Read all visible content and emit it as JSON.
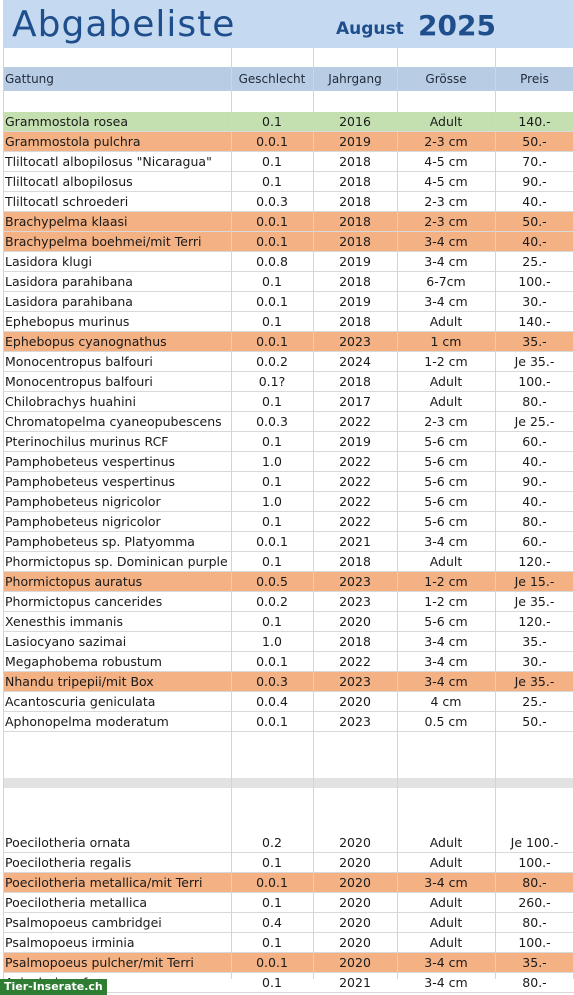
{
  "title": {
    "main": "Abgabeliste",
    "month": "August",
    "year": "2025"
  },
  "columns": [
    "Gattung",
    "Geschlecht",
    "Jahrgang",
    "Grösse",
    "Preis"
  ],
  "colors": {
    "title_band": "#c5d9f1",
    "header_band": "#b8cce4",
    "green": "#c4e0b0",
    "orange": "#f4b183",
    "title_text": "#1f4e8c"
  },
  "rows": [
    {
      "name": "Grammostola rosea",
      "sex": "0.1",
      "year": "2016",
      "size": "Adult",
      "price": "140.-",
      "hl": "green"
    },
    {
      "name": "Grammostola pulchra",
      "sex": "0.0.1",
      "year": "2019",
      "size": "2-3 cm",
      "price": "50.-",
      "hl": "orange"
    },
    {
      "name": "Tliltocatl albopilosus \"Nicaragua\"",
      "sex": "0.1",
      "year": "2018",
      "size": "4-5 cm",
      "price": "70.-",
      "hl": ""
    },
    {
      "name": "Tliltocatl albopilosus",
      "sex": "0.1",
      "year": "2018",
      "size": "4-5 cm",
      "price": "90.-",
      "hl": ""
    },
    {
      "name": "Tliltocatl schroederi",
      "sex": "0.0.3",
      "year": "2018",
      "size": "2-3 cm",
      "price": "40.-",
      "hl": ""
    },
    {
      "name": "Brachypelma  klaasi",
      "sex": "0.0.1",
      "year": "2018",
      "size": "2-3 cm",
      "price": "50.-",
      "hl": "orange"
    },
    {
      "name": "Brachypelma boehmei/mit Terri",
      "sex": "0.0.1",
      "year": "2018",
      "size": "3-4 cm",
      "price": "40.-",
      "hl": "orange"
    },
    {
      "name": "Lasidora klugi",
      "sex": "0.0.8",
      "year": "2019",
      "size": "3-4 cm",
      "price": "25.-",
      "hl": ""
    },
    {
      "name": "Lasidora parahibana",
      "sex": "0.1",
      "year": "2018",
      "size": "6-7cm",
      "price": "100.-",
      "hl": ""
    },
    {
      "name": "Lasidora parahibana",
      "sex": "0.0.1",
      "year": "2019",
      "size": "3-4 cm",
      "price": "30.-",
      "hl": ""
    },
    {
      "name": "Ephebopus murinus",
      "sex": "0.1",
      "year": "2018",
      "size": "Adult",
      "price": "140.-",
      "hl": ""
    },
    {
      "name": "Ephebopus cyanognathus",
      "sex": "0.0.1",
      "year": "2023",
      "size": "1 cm",
      "price": "35.-",
      "hl": "orange"
    },
    {
      "name": "Monocentropus balfouri",
      "sex": "0.0.2",
      "year": "2024",
      "size": "1-2 cm",
      "price": "Je 35.-",
      "hl": ""
    },
    {
      "name": "Monocentropus balfouri",
      "sex": "0.1?",
      "year": "2018",
      "size": "Adult",
      "price": "100.-",
      "hl": ""
    },
    {
      "name": "Chilobrachys huahini",
      "sex": "0.1",
      "year": "2017",
      "size": "Adult",
      "price": "80.-",
      "hl": ""
    },
    {
      "name": "Chromatopelma cyaneopubescens",
      "sex": "0.0.3",
      "year": "2022",
      "size": "2-3 cm",
      "price": "Je 25.-",
      "hl": ""
    },
    {
      "name": "Pterinochilus murinus RCF",
      "sex": "0.1",
      "year": "2019",
      "size": "5-6 cm",
      "price": "60.-",
      "hl": ""
    },
    {
      "name": "Pamphobeteus vespertinus",
      "sex": "1.0",
      "year": "2022",
      "size": "5-6 cm",
      "price": "40.-",
      "hl": ""
    },
    {
      "name": "Pamphobeteus vespertinus",
      "sex": "0.1",
      "year": "2022",
      "size": "5-6 cm",
      "price": "90.-",
      "hl": ""
    },
    {
      "name": "Pamphobeteus nigricolor",
      "sex": "1.0",
      "year": "2022",
      "size": "5-6 cm",
      "price": "40.-",
      "hl": ""
    },
    {
      "name": "Pamphobeteus nigricolor",
      "sex": "0.1",
      "year": "2022",
      "size": "5-6 cm",
      "price": "80.-",
      "hl": ""
    },
    {
      "name": "Pamphobeteus sp. Platyomma",
      "sex": "0.0.1",
      "year": "2021",
      "size": "3-4 cm",
      "price": "60.-",
      "hl": ""
    },
    {
      "name": "Phormictopus sp. Dominican purple",
      "sex": "0.1",
      "year": "2018",
      "size": "Adult",
      "price": "120.-",
      "hl": ""
    },
    {
      "name": "Phormictopus auratus",
      "sex": "0.0.5",
      "year": "2023",
      "size": "1-2 cm",
      "price": "Je 15.-",
      "hl": "orange"
    },
    {
      "name": "Phormictopus cancerides",
      "sex": "0.0.2",
      "year": "2023",
      "size": "1-2 cm",
      "price": "Je 35.-",
      "hl": ""
    },
    {
      "name": "Xenesthis immanis",
      "sex": "0.1",
      "year": "2020",
      "size": "5-6 cm",
      "price": "120.-",
      "hl": ""
    },
    {
      "name": "Lasiocyano sazimai",
      "sex": "1.0",
      "year": "2018",
      "size": "3-4 cm",
      "price": "35.-",
      "hl": ""
    },
    {
      "name": "Megaphobema robustum",
      "sex": "0.0.1",
      "year": "2022",
      "size": "3-4 cm",
      "price": "30.-",
      "hl": ""
    },
    {
      "name": "Nhandu tripepii/mit Box",
      "sex": "0.0.3",
      "year": "2023",
      "size": "3-4 cm",
      "price": "Je 35.-",
      "hl": "orange"
    },
    {
      "name": "Acantoscuria geniculata",
      "sex": "0.0.4",
      "year": "2020",
      "size": "4 cm",
      "price": "25.-",
      "hl": ""
    },
    {
      "name": "Aphonopelma moderatum",
      "sex": "0.0.1",
      "year": "2023",
      "size": "0.5 cm",
      "price": "50.-",
      "hl": ""
    }
  ],
  "rows2": [
    {
      "name": "Poecilotheria ornata",
      "sex": "0.2",
      "year": "2020",
      "size": "Adult",
      "price": "Je 100.-",
      "hl": ""
    },
    {
      "name": "Poecilotheria regalis",
      "sex": "0.1",
      "year": "2020",
      "size": "Adult",
      "price": "100.-",
      "hl": ""
    },
    {
      "name": "Poecilotheria metallica/mit Terri",
      "sex": "0.0.1",
      "year": "2020",
      "size": "3-4 cm",
      "price": "80.-",
      "hl": "orange"
    },
    {
      "name": "Poecilotheria metallica",
      "sex": "0.1",
      "year": "2020",
      "size": "Adult",
      "price": "260.-",
      "hl": ""
    },
    {
      "name": "Psalmopoeus cambridgei",
      "sex": "0.4",
      "year": "2020",
      "size": "Adult",
      "price": "80.-",
      "hl": ""
    },
    {
      "name": "Psalmopoeus irminia",
      "sex": "0.1",
      "year": "2020",
      "size": "Adult",
      "price": "100.-",
      "hl": ""
    },
    {
      "name": "Psalmopoeus pulcher/mit Terri",
      "sex": "0.0.1",
      "year": "2020",
      "size": "3-4 cm",
      "price": "35.-",
      "hl": "orange"
    },
    {
      "name": "Avicularia rufus",
      "sex": "0.1",
      "year": "2021",
      "size": "3-4 cm",
      "price": "80.-",
      "hl": ""
    }
  ],
  "watermark": "Tier-Inserate.ch"
}
